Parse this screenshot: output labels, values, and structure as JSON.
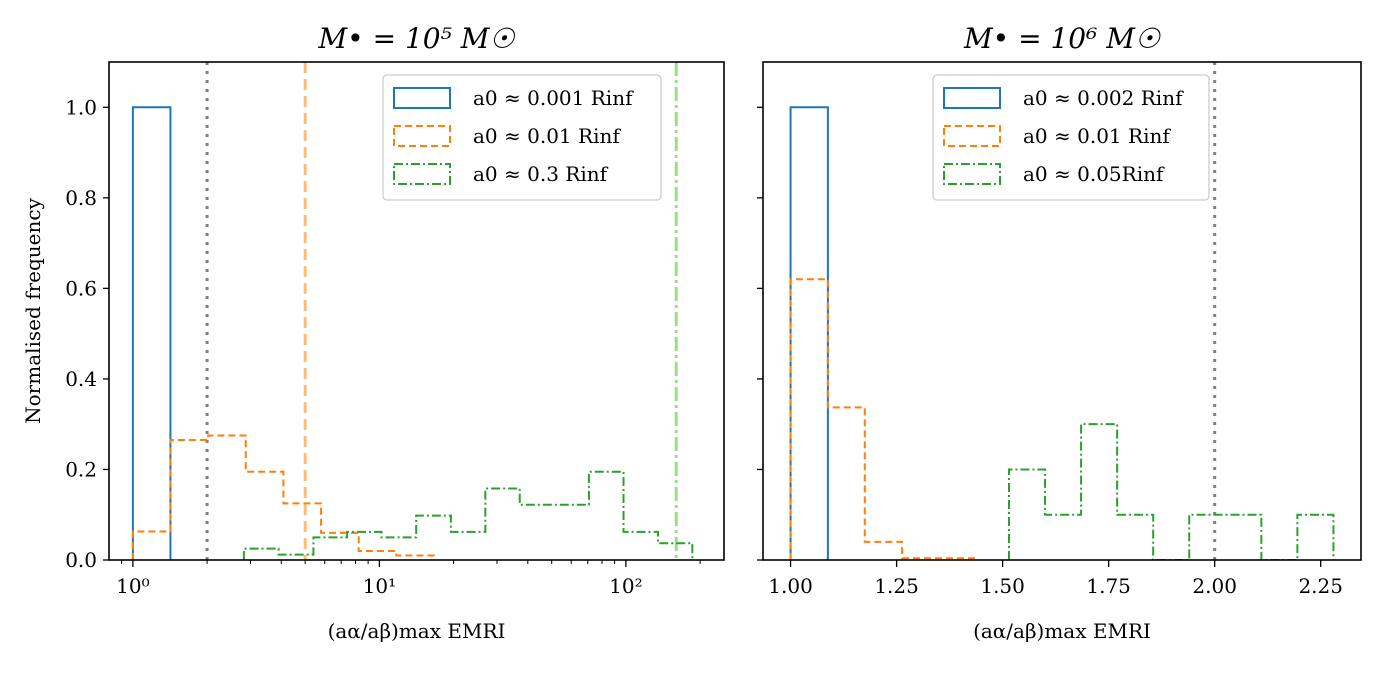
{
  "chart_data": [
    {
      "type": "histogram",
      "title": "M• = 10⁵ M☉",
      "xlabel": "(aα/aβ)max EMRI",
      "ylabel": "Normalised frequency",
      "xscale": "log",
      "xlim": [
        0.8,
        250
      ],
      "ylim": [
        0,
        1.1
      ],
      "xticks": [
        1,
        10,
        100
      ],
      "xtick_labels": [
        "10⁰",
        "10¹",
        "10²"
      ],
      "yticks": [
        0.0,
        0.2,
        0.4,
        0.6,
        0.8,
        1.0
      ],
      "ytick_labels": [
        "0.0",
        "0.2",
        "0.4",
        "0.6",
        "0.8",
        "1.0"
      ],
      "legend_position": "top-right",
      "series": [
        {
          "name": "a0 ≈ 0.001 Rinf",
          "color": "#1f77b4",
          "style": "solid",
          "edges": [
            1.0,
            1.42
          ],
          "values": [
            1.0
          ]
        },
        {
          "name": "a0 ≈ 0.01 Rinf",
          "color": "#ff7f0e",
          "style": "dashed",
          "edges": [
            1.0,
            1.42,
            2.02,
            2.87,
            4.08,
            5.8,
            8.24,
            11.71,
            16.64
          ],
          "values": [
            0.063,
            0.265,
            0.275,
            0.195,
            0.125,
            0.06,
            0.02,
            0.01
          ]
        },
        {
          "name": "a0 ≈ 0.3 Rinf",
          "color": "#2ca02c",
          "style": "dashdot",
          "edges": [
            2.82,
            3.9,
            5.4,
            7.4,
            10.2,
            14.1,
            19.5,
            26.9,
            37.1,
            51.3,
            70.8,
            97.8,
            135,
            186
          ],
          "values": [
            0.025,
            0.012,
            0.05,
            0.062,
            0.05,
            0.098,
            0.062,
            0.158,
            0.122,
            0.122,
            0.195,
            0.062,
            0.037
          ]
        }
      ],
      "vlines": [
        {
          "x": 2.0,
          "color": "#808080",
          "style": "dotted"
        },
        {
          "x": 5.0,
          "color": "#ffbb78",
          "style": "dashed"
        },
        {
          "x": 160,
          "color": "#98df8a",
          "style": "dashdot"
        }
      ]
    },
    {
      "type": "histogram",
      "title": "M• = 10⁶ M☉",
      "xlabel": "(aα/aβ)max EMRI",
      "ylabel": "",
      "xscale": "linear",
      "xlim": [
        0.935,
        2.345
      ],
      "ylim": [
        0,
        1.1
      ],
      "xticks": [
        1.0,
        1.25,
        1.5,
        1.75,
        2.0,
        2.25
      ],
      "xtick_labels": [
        "1.00",
        "1.25",
        "1.50",
        "1.75",
        "2.00",
        "2.25"
      ],
      "yticks": [
        0.0,
        0.2,
        0.4,
        0.6,
        0.8,
        1.0
      ],
      "legend_position": "top-center",
      "series": [
        {
          "name": "a0 ≈ 0.002 Rinf",
          "color": "#1f77b4",
          "style": "solid",
          "edges": [
            1.0,
            1.088
          ],
          "values": [
            1.0
          ]
        },
        {
          "name": "a0 ≈ 0.01 Rinf",
          "color": "#ff7f0e",
          "style": "dashed",
          "edges": [
            1.0,
            1.088,
            1.175,
            1.263,
            1.35,
            1.438
          ],
          "values": [
            0.62,
            0.337,
            0.04,
            0.004,
            0.004
          ]
        },
        {
          "name": "a0 ≈ 0.05Rinf",
          "color": "#2ca02c",
          "style": "dashdot",
          "edges": [
            1.515,
            1.6,
            1.685,
            1.77,
            1.855,
            1.94,
            2.025,
            2.11,
            2.195,
            2.28
          ],
          "values": [
            0.2,
            0.1,
            0.3,
            0.1,
            0.0,
            0.1,
            0.1,
            0.0,
            0.1
          ]
        }
      ],
      "vlines": [
        {
          "x": 2.0,
          "color": "#808080",
          "style": "dotted"
        }
      ]
    }
  ]
}
